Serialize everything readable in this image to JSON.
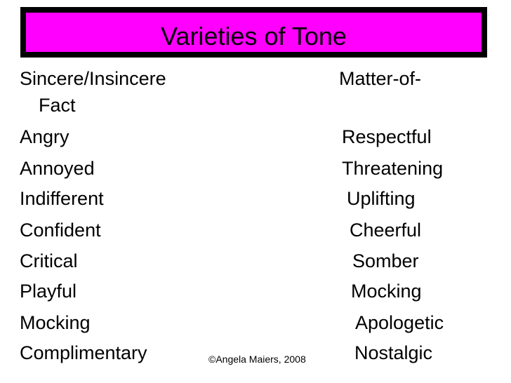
{
  "title": "Varieties of Tone",
  "left_column": [
    "Sincere/Insincere",
    "Angry",
    "Annoyed",
    "Indifferent",
    "Confident",
    "Critical",
    "Playful",
    "Mocking",
    "Complimentary"
  ],
  "right_column": [
    "Matter-of-",
    "Fact",
    "Respectful",
    "Threatening",
    "Uplifting",
    "Cheerful",
    "Somber",
    "Mocking",
    "Apologetic",
    "Nostalgic"
  ],
  "copyright": "©Angela Maiers, 2008",
  "colors": {
    "title_bar": "#ff00ff",
    "frame": "#000000",
    "text": "#000000",
    "background": "#ffffff"
  }
}
